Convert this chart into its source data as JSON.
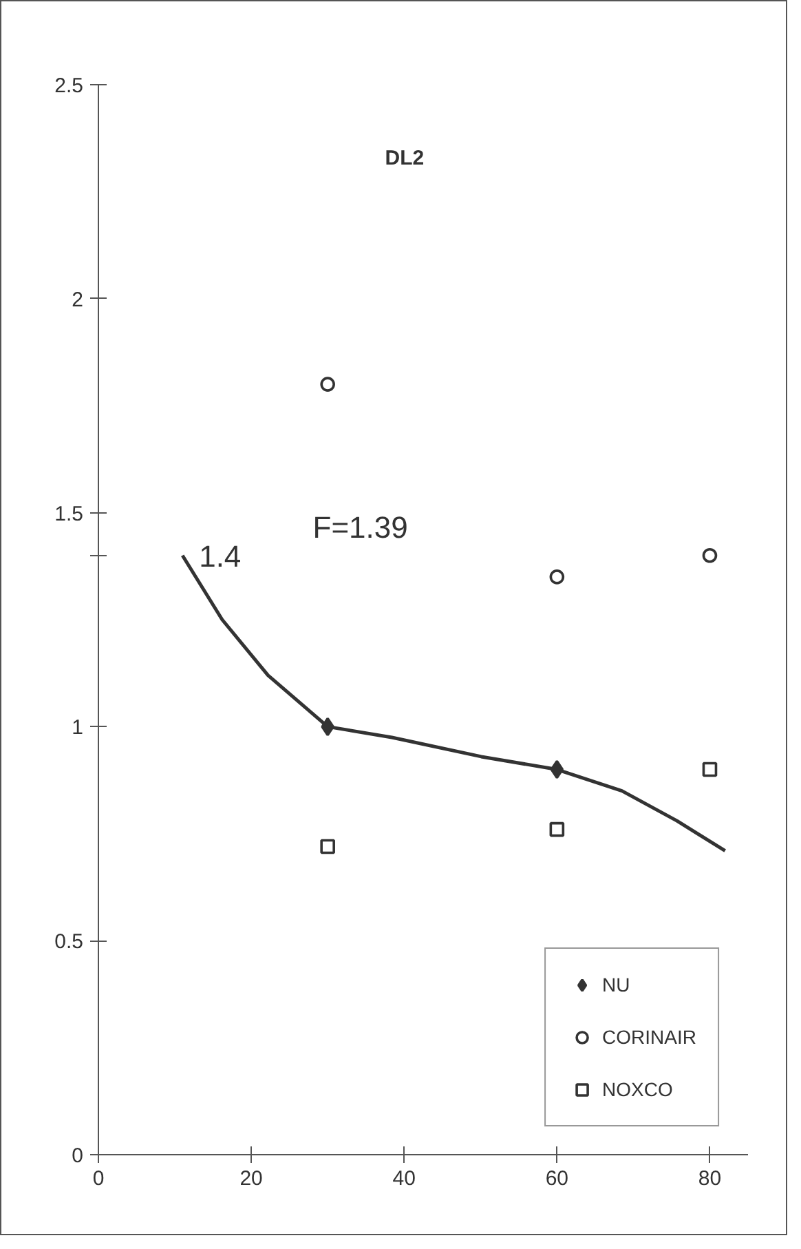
{
  "chart_data": {
    "type": "scatter",
    "title": "DL2",
    "annotations": [
      "F=1.39",
      {
        "text": "1.4",
        "x": 11,
        "y": 1.4
      }
    ],
    "xlim": [
      0,
      85
    ],
    "xticks": [
      0,
      20,
      40,
      60,
      80
    ],
    "ylim": [
      0,
      2.5
    ],
    "yticks": [
      0,
      0.5,
      1,
      {
        "value": 1.4,
        "label": null
      },
      1.5,
      2,
      2.5
    ],
    "grid": false,
    "legend": "bottom right",
    "series": [
      {
        "type": "line",
        "color": "#333333",
        "marker": "none",
        "line_style": "solid",
        "x": [
          11,
          16.2,
          22.2,
          30,
          38.4,
          50.1,
          60,
          68.5,
          75.7,
          82
        ],
        "values": [
          1.4,
          1.25,
          1.12,
          1.0,
          0.975,
          0.93,
          0.9,
          0.85,
          0.78,
          0.71
        ]
      },
      {
        "name": "NU",
        "color": "#333333",
        "marker": "diamond",
        "x": [
          30,
          60
        ],
        "values": [
          1.0,
          0.9
        ]
      },
      {
        "name": "CORINAIR",
        "color": "#333333",
        "marker": "circle",
        "x": [
          30,
          60,
          80
        ],
        "values": [
          1.8,
          1.35,
          1.4
        ]
      },
      {
        "name": "NOXCO",
        "color": "#333333",
        "marker": "square",
        "x": [
          30,
          60,
          80
        ],
        "values": [
          0.72,
          0.76,
          0.9
        ]
      }
    ]
  }
}
